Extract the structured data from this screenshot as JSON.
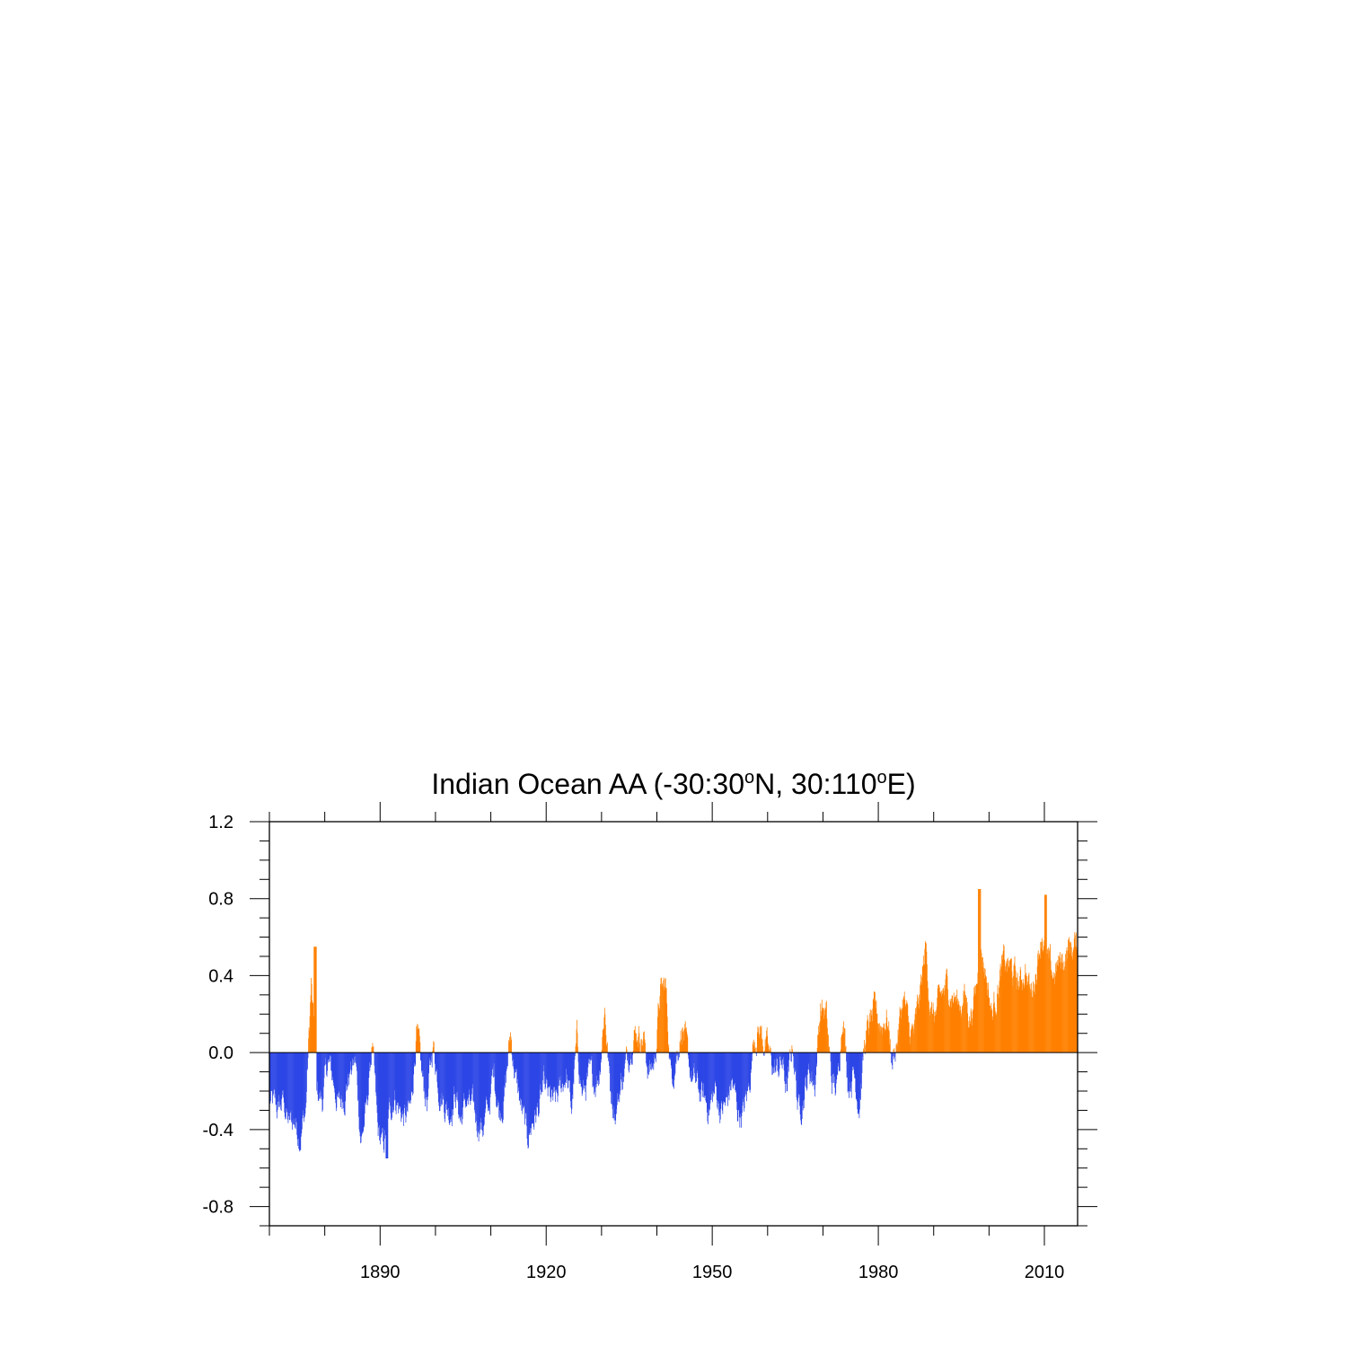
{
  "chart_data": {
    "type": "bar",
    "title_parts": {
      "main": "Indian Ocean AA (-30:30",
      "deg1": "o",
      "mid": "N, 30:110",
      "deg2": "o",
      "end": "E)"
    },
    "xlabel": "",
    "ylabel": "",
    "xlim": [
      1870,
      2016
    ],
    "ylim": [
      -0.9,
      1.2
    ],
    "x_major_ticks": [
      1890,
      1920,
      1950,
      1980,
      2010
    ],
    "x_tick_labels": [
      "1890",
      "1920",
      "1950",
      "1980",
      "2010"
    ],
    "x_minor_step": 10,
    "y_major_ticks": [
      -0.8,
      -0.4,
      0.0,
      0.4,
      0.8,
      1.2
    ],
    "y_tick_labels": [
      "-0.8",
      "-0.4",
      "0.0",
      "0.4",
      "0.8",
      "1.2"
    ],
    "y_minor_step": 0.1,
    "positive_color": "#ff8000",
    "negative_color": "#2d46e6",
    "baseline": 0.0,
    "resolution": "monthly",
    "annual_x": [
      1870,
      1871,
      1872,
      1873,
      1874,
      1875,
      1876,
      1877,
      1878,
      1879,
      1880,
      1881,
      1882,
      1883,
      1884,
      1885,
      1886,
      1887,
      1888,
      1889,
      1890,
      1891,
      1892,
      1893,
      1894,
      1895,
      1896,
      1897,
      1898,
      1899,
      1900,
      1901,
      1902,
      1903,
      1904,
      1905,
      1906,
      1907,
      1908,
      1909,
      1910,
      1911,
      1912,
      1913,
      1914,
      1915,
      1916,
      1917,
      1918,
      1919,
      1920,
      1921,
      1922,
      1923,
      1924,
      1925,
      1926,
      1927,
      1928,
      1929,
      1930,
      1931,
      1932,
      1933,
      1934,
      1935,
      1936,
      1937,
      1938,
      1939,
      1940,
      1941,
      1942,
      1943,
      1944,
      1945,
      1946,
      1947,
      1948,
      1949,
      1950,
      1951,
      1952,
      1953,
      1954,
      1955,
      1956,
      1957,
      1958,
      1959,
      1960,
      1961,
      1962,
      1963,
      1964,
      1965,
      1966,
      1967,
      1968,
      1969,
      1970,
      1971,
      1972,
      1973,
      1974,
      1975,
      1976,
      1977,
      1978,
      1979,
      1980,
      1981,
      1982,
      1983,
      1984,
      1985,
      1986,
      1987,
      1988,
      1989,
      1990,
      1991,
      1992,
      1993,
      1994,
      1995,
      1996,
      1997,
      1998,
      1999,
      2000,
      2001,
      2002,
      2003,
      2004,
      2005,
      2006,
      2007,
      2008,
      2009,
      2010,
      2011,
      2012,
      2013,
      2014,
      2015
    ],
    "annual_values": [
      -0.22,
      -0.28,
      -0.3,
      -0.25,
      -0.38,
      -0.35,
      -0.42,
      -0.3,
      0.35,
      -0.2,
      -0.25,
      -0.05,
      -0.15,
      -0.28,
      -0.2,
      -0.1,
      -0.05,
      -0.45,
      -0.3,
      0.05,
      -0.42,
      -0.5,
      -0.35,
      -0.2,
      -0.3,
      -0.35,
      -0.3,
      0.12,
      -0.15,
      -0.25,
      0.05,
      -0.15,
      -0.25,
      -0.3,
      -0.2,
      -0.35,
      -0.25,
      -0.3,
      -0.35,
      -0.38,
      -0.3,
      -0.1,
      -0.3,
      -0.2,
      0.1,
      -0.15,
      -0.3,
      -0.45,
      -0.35,
      -0.3,
      -0.2,
      -0.25,
      -0.28,
      -0.2,
      -0.1,
      -0.3,
      0.05,
      -0.22,
      -0.15,
      -0.15,
      -0.1,
      0.25,
      -0.18,
      -0.3,
      -0.15,
      -0.05,
      0.1,
      0.12,
      0.08,
      -0.1,
      -0.05,
      0.3,
      0.35,
      -0.12,
      0.0,
      0.15,
      -0.05,
      -0.15,
      -0.2,
      -0.25,
      -0.28,
      -0.2,
      -0.3,
      -0.28,
      -0.15,
      -0.3,
      -0.32,
      -0.2,
      0.1,
      0.12,
      0.05,
      -0.05,
      -0.1,
      -0.05,
      -0.2,
      0.05,
      -0.3,
      -0.2,
      -0.1,
      -0.15,
      0.25,
      0.2,
      -0.15,
      -0.2,
      0.25,
      -0.15,
      -0.1,
      -0.25,
      0.05,
      0.15,
      0.2,
      0.15,
      0.2,
      -0.05,
      0.1,
      0.3,
      0.1,
      0.1,
      0.3,
      0.55,
      0.2,
      0.2,
      0.3,
      0.35,
      0.3,
      0.25,
      0.3,
      0.2,
      0.3,
      0.55,
      0.4,
      0.2,
      0.35,
      0.45,
      0.45,
      0.4,
      0.35,
      0.45,
      0.3,
      0.45,
      0.65,
      0.45,
      0.4,
      0.45,
      0.5,
      0.55
    ],
    "monthly_amplitude_note": "Monthly values fluctuate around annual means; peaks near 0.6 (1878), 0.9 (1998), 0.88 (2010); troughs near -0.6 (1891)"
  }
}
